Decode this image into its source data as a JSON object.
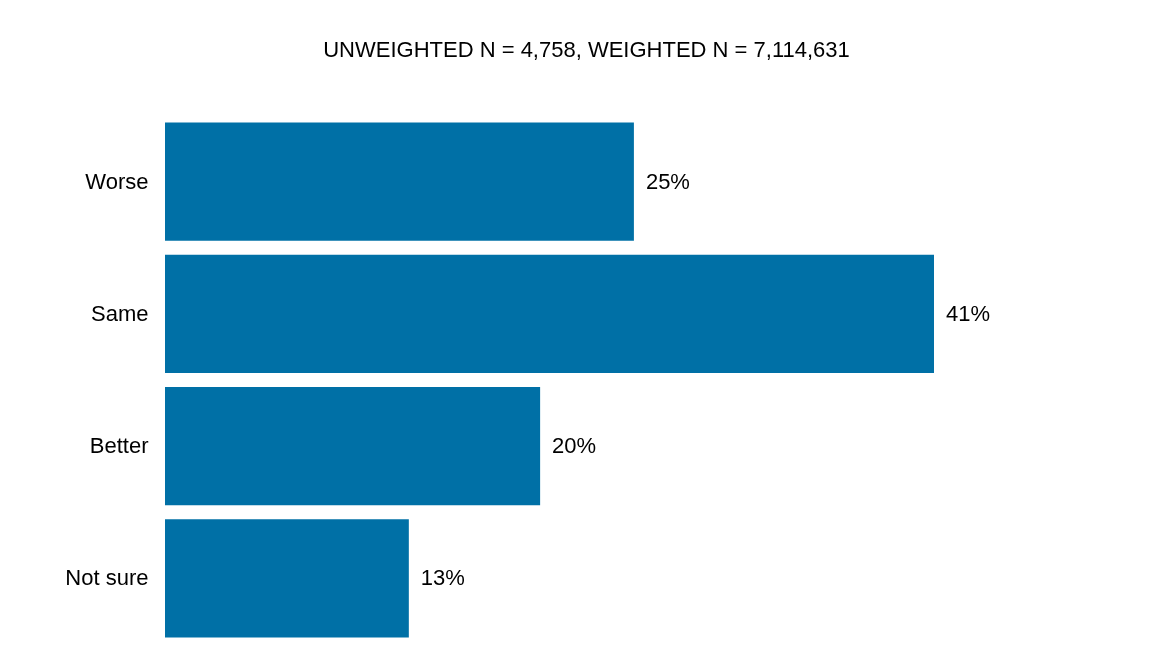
{
  "chart_data": {
    "type": "bar",
    "orientation": "horizontal",
    "title": "UNWEIGHTED N = 4,758, WEIGHTED N = 7,114,631",
    "categories": [
      "Worse",
      "Same",
      "Better",
      "Not sure"
    ],
    "values": [
      25,
      41,
      20,
      13
    ],
    "color": "#0070a6",
    "value_labels": [
      "25%",
      "41%",
      "20%",
      "13%"
    ]
  }
}
